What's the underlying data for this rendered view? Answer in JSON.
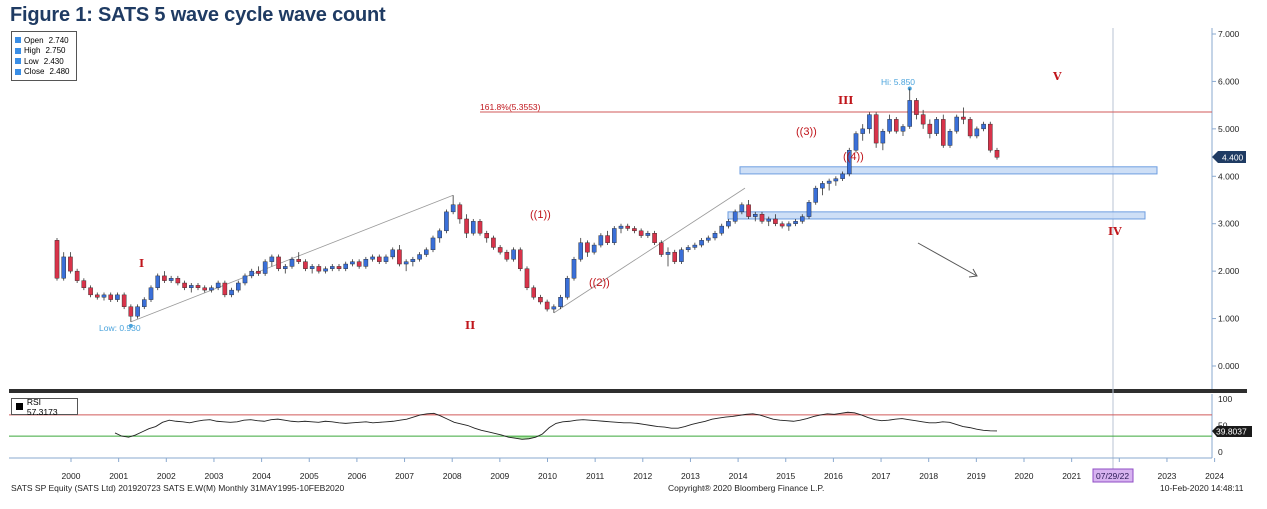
{
  "figure_title": "Figure 1: SATS 5 wave cycle wave count",
  "ohlc_legend": [
    {
      "label": "Open",
      "value": "2.740"
    },
    {
      "label": "High",
      "value": "2.750"
    },
    {
      "label": "Low",
      "value": "2.430"
    },
    {
      "label": "Close",
      "value": "2.480"
    }
  ],
  "rsi_legend": "RSI 57.3173",
  "footer": {
    "left": "SATS SP Equity (SATS Ltd) 201920723 SATS E.W(M)  Monthly 31MAY1995-10FEB2020",
    "center": "Copyright® 2020 Bloomberg Finance L.P.",
    "right": "10-Feb-2020 14:48:11"
  },
  "colors": {
    "up": "#3a6fd8",
    "down": "#d8334a",
    "wave_label": "#c0151b",
    "fib_line": "#d05a5a",
    "zone_fill": "#c6d9f4",
    "zone_edge": "#6e9ee0",
    "annotation_blue": "#4aa3dc",
    "rsi_overbought": "#f3b7b7",
    "rsi_oversold": "#a8e2a0"
  },
  "chart_data": {
    "type": "candlestick",
    "x_ticks": [
      "2000",
      "2001",
      "2002",
      "2003",
      "2004",
      "2005",
      "2006",
      "2007",
      "2008",
      "2009",
      "2010",
      "2011",
      "2012",
      "2013",
      "2014",
      "2015",
      "2016",
      "2017",
      "2018",
      "2019",
      "2020",
      "2021",
      "2022",
      "2023",
      "2024"
    ],
    "date_marker": "07/29/22",
    "y_ticks": [
      "7.000",
      "6.000",
      "5.000",
      "4.000",
      "3.000",
      "2.000",
      "1.000",
      "0.000"
    ],
    "ylim": [
      -0.2,
      7.0
    ],
    "last_price_label": "4.400",
    "low_label": "Low: 0.930",
    "high_label": "Hi: 5.850",
    "fib_label": "161.8%(5.3553)",
    "fib_level": 5.3553,
    "wave_labels": [
      "I",
      "II",
      "III",
      "IV",
      "V",
      "((1))",
      "((2))",
      "((3))",
      "((4))"
    ],
    "support_zones": [
      [
        4.05,
        4.2
      ],
      [
        3.1,
        3.25
      ]
    ],
    "rsi": {
      "y_ticks": [
        "100",
        "50",
        "0"
      ],
      "last_label": "39.8037",
      "overbought": 70,
      "oversold": 30,
      "values": [
        36,
        30,
        28,
        32,
        38,
        44,
        48,
        56,
        60,
        58,
        57,
        55,
        58,
        60,
        61,
        58,
        57,
        56,
        57,
        60,
        61,
        59,
        58,
        61,
        62,
        60,
        58,
        57,
        58,
        57,
        56,
        58,
        57,
        55,
        54,
        55,
        56,
        57,
        55,
        56,
        57,
        58,
        60,
        62,
        66,
        70,
        72,
        73,
        68,
        62,
        56,
        53,
        50,
        45,
        41,
        38,
        35,
        32,
        28,
        26,
        24,
        25,
        28,
        34,
        46,
        54,
        57,
        58,
        60,
        61,
        60,
        59,
        58,
        57,
        56,
        55,
        55,
        54,
        52,
        50,
        48,
        47,
        45,
        45,
        48,
        52,
        55,
        58,
        62,
        64,
        66,
        67,
        69,
        71,
        72,
        70,
        66,
        62,
        60,
        59,
        58,
        60,
        63,
        67,
        70,
        72,
        71,
        73,
        75,
        74,
        70,
        65,
        61,
        59,
        60,
        62,
        63,
        61,
        59,
        57,
        55,
        55,
        57,
        56,
        52,
        48,
        46,
        43,
        41,
        40,
        39.8
      ]
    },
    "candles": [
      [
        2.65,
        2.7,
        1.8,
        1.85
      ],
      [
        1.85,
        2.4,
        1.8,
        2.3
      ],
      [
        2.3,
        2.4,
        1.95,
        2.0
      ],
      [
        2.0,
        2.05,
        1.75,
        1.8
      ],
      [
        1.8,
        1.85,
        1.6,
        1.65
      ],
      [
        1.65,
        1.7,
        1.45,
        1.5
      ],
      [
        1.5,
        1.55,
        1.4,
        1.45
      ],
      [
        1.45,
        1.55,
        1.38,
        1.5
      ],
      [
        1.5,
        1.55,
        1.35,
        1.4
      ],
      [
        1.4,
        1.55,
        1.35,
        1.5
      ],
      [
        1.5,
        1.55,
        1.2,
        1.25
      ],
      [
        1.25,
        1.3,
        0.93,
        1.05
      ],
      [
        1.05,
        1.3,
        1.0,
        1.25
      ],
      [
        1.25,
        1.45,
        1.2,
        1.4
      ],
      [
        1.4,
        1.7,
        1.35,
        1.65
      ],
      [
        1.65,
        1.95,
        1.6,
        1.9
      ],
      [
        1.9,
        2.0,
        1.75,
        1.8
      ],
      [
        1.8,
        1.9,
        1.75,
        1.85
      ],
      [
        1.85,
        1.9,
        1.7,
        1.75
      ],
      [
        1.75,
        1.8,
        1.6,
        1.65
      ],
      [
        1.65,
        1.75,
        1.55,
        1.7
      ],
      [
        1.7,
        1.75,
        1.6,
        1.65
      ],
      [
        1.65,
        1.7,
        1.55,
        1.6
      ],
      [
        1.6,
        1.7,
        1.55,
        1.65
      ],
      [
        1.65,
        1.8,
        1.6,
        1.75
      ],
      [
        1.75,
        1.8,
        1.45,
        1.5
      ],
      [
        1.5,
        1.65,
        1.45,
        1.6
      ],
      [
        1.6,
        1.8,
        1.55,
        1.75
      ],
      [
        1.75,
        1.95,
        1.7,
        1.9
      ],
      [
        1.9,
        2.05,
        1.85,
        2.0
      ],
      [
        2.0,
        2.1,
        1.9,
        1.95
      ],
      [
        1.95,
        2.25,
        1.9,
        2.2
      ],
      [
        2.2,
        2.35,
        2.1,
        2.3
      ],
      [
        2.3,
        2.35,
        2.0,
        2.05
      ],
      [
        2.05,
        2.15,
        1.95,
        2.1
      ],
      [
        2.1,
        2.3,
        2.05,
        2.25
      ],
      [
        2.25,
        2.4,
        2.15,
        2.2
      ],
      [
        2.2,
        2.25,
        2.0,
        2.05
      ],
      [
        2.05,
        2.15,
        1.95,
        2.1
      ],
      [
        2.1,
        2.15,
        1.95,
        2.0
      ],
      [
        2.0,
        2.1,
        1.95,
        2.05
      ],
      [
        2.05,
        2.15,
        2.0,
        2.1
      ],
      [
        2.1,
        2.15,
        2.0,
        2.05
      ],
      [
        2.05,
        2.2,
        2.0,
        2.15
      ],
      [
        2.15,
        2.25,
        2.1,
        2.2
      ],
      [
        2.2,
        2.25,
        2.05,
        2.1
      ],
      [
        2.1,
        2.3,
        2.05,
        2.25
      ],
      [
        2.25,
        2.35,
        2.2,
        2.3
      ],
      [
        2.3,
        2.35,
        2.15,
        2.2
      ],
      [
        2.2,
        2.35,
        2.15,
        2.3
      ],
      [
        2.3,
        2.5,
        2.25,
        2.45
      ],
      [
        2.45,
        2.55,
        2.1,
        2.15
      ],
      [
        2.15,
        2.25,
        2.0,
        2.2
      ],
      [
        2.2,
        2.3,
        2.1,
        2.25
      ],
      [
        2.25,
        2.4,
        2.2,
        2.35
      ],
      [
        2.35,
        2.5,
        2.3,
        2.45
      ],
      [
        2.45,
        2.75,
        2.4,
        2.7
      ],
      [
        2.7,
        2.9,
        2.6,
        2.85
      ],
      [
        2.85,
        3.3,
        2.8,
        3.25
      ],
      [
        3.25,
        3.6,
        3.2,
        3.4
      ],
      [
        3.4,
        3.45,
        3.0,
        3.1
      ],
      [
        3.1,
        3.2,
        2.7,
        2.8
      ],
      [
        2.8,
        3.1,
        2.75,
        3.05
      ],
      [
        3.05,
        3.1,
        2.75,
        2.8
      ],
      [
        2.8,
        2.85,
        2.6,
        2.7
      ],
      [
        2.7,
        2.75,
        2.45,
        2.5
      ],
      [
        2.5,
        2.55,
        2.35,
        2.4
      ],
      [
        2.4,
        2.45,
        2.2,
        2.25
      ],
      [
        2.25,
        2.5,
        2.2,
        2.45
      ],
      [
        2.45,
        2.5,
        2.0,
        2.05
      ],
      [
        2.05,
        2.1,
        1.6,
        1.65
      ],
      [
        1.65,
        1.7,
        1.4,
        1.45
      ],
      [
        1.45,
        1.5,
        1.3,
        1.35
      ],
      [
        1.35,
        1.4,
        1.15,
        1.2
      ],
      [
        1.2,
        1.3,
        1.12,
        1.25
      ],
      [
        1.25,
        1.5,
        1.2,
        1.45
      ],
      [
        1.45,
        1.9,
        1.4,
        1.85
      ],
      [
        1.85,
        2.3,
        1.8,
        2.25
      ],
      [
        2.25,
        2.7,
        2.2,
        2.6
      ],
      [
        2.6,
        2.65,
        2.3,
        2.4
      ],
      [
        2.4,
        2.6,
        2.35,
        2.55
      ],
      [
        2.55,
        2.8,
        2.5,
        2.75
      ],
      [
        2.75,
        2.85,
        2.55,
        2.6
      ],
      [
        2.6,
        2.95,
        2.55,
        2.9
      ],
      [
        2.9,
        3.0,
        2.8,
        2.95
      ],
      [
        2.95,
        3.0,
        2.85,
        2.9
      ],
      [
        2.9,
        2.95,
        2.8,
        2.85
      ],
      [
        2.85,
        2.9,
        2.7,
        2.75
      ],
      [
        2.75,
        2.85,
        2.7,
        2.8
      ],
      [
        2.8,
        2.85,
        2.55,
        2.6
      ],
      [
        2.6,
        2.65,
        2.3,
        2.35
      ],
      [
        2.35,
        2.5,
        2.1,
        2.4
      ],
      [
        2.4,
        2.45,
        2.15,
        2.2
      ],
      [
        2.2,
        2.5,
        2.15,
        2.45
      ],
      [
        2.45,
        2.55,
        2.4,
        2.5
      ],
      [
        2.5,
        2.6,
        2.45,
        2.55
      ],
      [
        2.55,
        2.7,
        2.5,
        2.65
      ],
      [
        2.65,
        2.75,
        2.6,
        2.7
      ],
      [
        2.7,
        2.85,
        2.65,
        2.8
      ],
      [
        2.8,
        3.0,
        2.75,
        2.95
      ],
      [
        2.95,
        3.1,
        2.9,
        3.05
      ],
      [
        3.05,
        3.3,
        3.0,
        3.25
      ],
      [
        3.25,
        3.45,
        3.2,
        3.4
      ],
      [
        3.4,
        3.5,
        3.1,
        3.15
      ],
      [
        3.15,
        3.25,
        3.05,
        3.2
      ],
      [
        3.2,
        3.25,
        3.0,
        3.05
      ],
      [
        3.05,
        3.15,
        2.95,
        3.1
      ],
      [
        3.1,
        3.2,
        2.95,
        3.0
      ],
      [
        3.0,
        3.05,
        2.9,
        2.95
      ],
      [
        2.95,
        3.05,
        2.85,
        3.0
      ],
      [
        3.0,
        3.1,
        2.95,
        3.05
      ],
      [
        3.05,
        3.2,
        3.0,
        3.15
      ],
      [
        3.15,
        3.5,
        3.1,
        3.45
      ],
      [
        3.45,
        3.8,
        3.4,
        3.75
      ],
      [
        3.75,
        3.9,
        3.6,
        3.85
      ],
      [
        3.85,
        3.95,
        3.7,
        3.9
      ],
      [
        3.9,
        4.0,
        3.8,
        3.95
      ],
      [
        3.95,
        4.1,
        3.9,
        4.05
      ],
      [
        4.05,
        4.6,
        4.0,
        4.55
      ],
      [
        4.55,
        4.95,
        4.5,
        4.9
      ],
      [
        4.9,
        5.1,
        4.75,
        5.0
      ],
      [
        5.0,
        5.35,
        4.9,
        5.3
      ],
      [
        5.3,
        5.35,
        4.6,
        4.7
      ],
      [
        4.7,
        5.0,
        4.55,
        4.95
      ],
      [
        4.95,
        5.3,
        4.9,
        5.2
      ],
      [
        5.2,
        5.25,
        4.9,
        4.95
      ],
      [
        4.95,
        5.1,
        4.85,
        5.05
      ],
      [
        5.05,
        5.85,
        5.0,
        5.6
      ],
      [
        5.6,
        5.65,
        5.2,
        5.3
      ],
      [
        5.3,
        5.4,
        5.0,
        5.1
      ],
      [
        5.1,
        5.2,
        4.8,
        4.9
      ],
      [
        4.9,
        5.25,
        4.85,
        5.2
      ],
      [
        5.2,
        5.3,
        4.6,
        4.65
      ],
      [
        4.65,
        5.0,
        4.6,
        4.95
      ],
      [
        4.95,
        5.3,
        4.9,
        5.25
      ],
      [
        5.25,
        5.45,
        5.1,
        5.2
      ],
      [
        5.2,
        5.25,
        4.8,
        4.85
      ],
      [
        4.85,
        5.05,
        4.8,
        5.0
      ],
      [
        5.0,
        5.15,
        4.95,
        5.1
      ],
      [
        5.1,
        5.15,
        4.5,
        4.55
      ],
      [
        4.55,
        4.6,
        4.35,
        4.4
      ]
    ]
  }
}
